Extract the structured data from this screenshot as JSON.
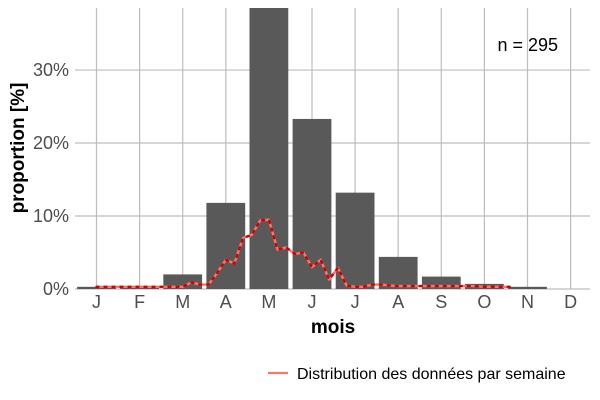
{
  "chart_data": {
    "type": "bar",
    "xlabel": "mois",
    "ylabel": "proportion [%]",
    "categories": [
      "J",
      "F",
      "M",
      "A",
      "M",
      "J",
      "J",
      "A",
      "S",
      "O",
      "N",
      "D"
    ],
    "ylim": [
      0,
      38.5
    ],
    "yticks": [
      0,
      10,
      20,
      30
    ],
    "ytick_labels": [
      "0%",
      "10%",
      "20%",
      "30%"
    ],
    "grid": true,
    "annotation": "n = 295",
    "legend_position": "bottom-right",
    "series": [
      {
        "type": "bar",
        "values": [
          0.3,
          0.3,
          2.0,
          11.8,
          38.5,
          23.3,
          13.2,
          4.4,
          1.7,
          0.7,
          0.3,
          0.0
        ]
      },
      {
        "type": "line",
        "name": "Distribution des données par semaine",
        "color": "#f8766d",
        "point_color": "#cc0000",
        "x": [
          1.0,
          1.2,
          1.4,
          1.6,
          1.8,
          2.0,
          2.2,
          2.4,
          2.6,
          2.8,
          3.0,
          3.2,
          3.4,
          3.6,
          3.8,
          4.0,
          4.2,
          4.4,
          4.6,
          4.8,
          5.0,
          5.2,
          5.4,
          5.6,
          5.8,
          6.0,
          6.2,
          6.4,
          6.6,
          6.8,
          7.0,
          7.2,
          7.4,
          7.6,
          7.8,
          8.0,
          8.2,
          8.4,
          8.6,
          8.8,
          9.0,
          9.2,
          9.4,
          9.6,
          9.8,
          10.0,
          10.2,
          10.4,
          10.6
        ],
        "values": [
          0.3,
          0.3,
          0.3,
          0.3,
          0.3,
          0.3,
          0.3,
          0.3,
          0.3,
          0.3,
          0.3,
          0.9,
          0.6,
          0.6,
          2.2,
          4.0,
          3.5,
          7.0,
          7.4,
          9.4,
          9.5,
          5.4,
          5.7,
          4.8,
          5.0,
          3.0,
          4.0,
          1.3,
          2.9,
          0.5,
          0.3,
          0.3,
          0.6,
          0.6,
          0.5,
          0.4,
          0.4,
          0.4,
          0.4,
          0.4,
          0.4,
          0.4,
          0.4,
          0.4,
          0.4,
          0.3,
          0.3,
          0.3,
          0.3
        ]
      }
    ]
  }
}
